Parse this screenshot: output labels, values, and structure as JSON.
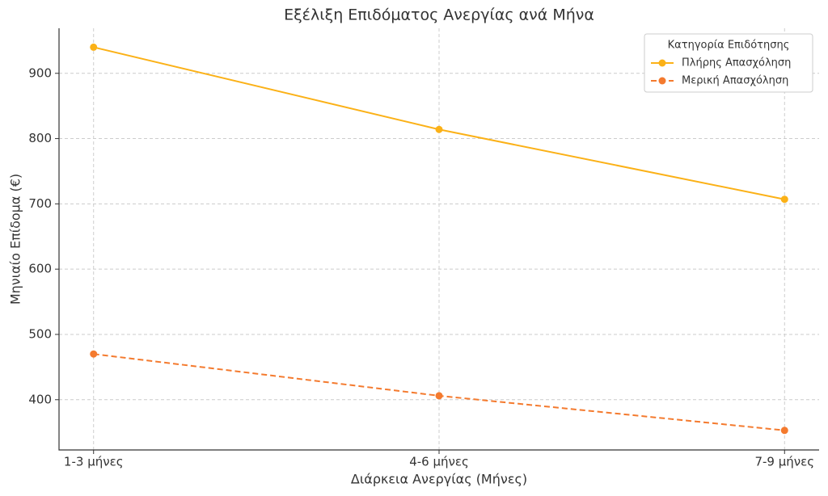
{
  "chart_data": {
    "type": "line",
    "title": "Εξέλιξη Επιδόματος Ανεργίας ανά Μήνα",
    "x_label": "Διάρκεια Ανεργίας (Μήνες)",
    "y_label": "Μηνιαίο Επίδομα (€)",
    "categories": [
      "1-3 μήνες",
      "4-6 μήνες",
      "7-9 μήνες"
    ],
    "series": [
      {
        "name": "Πλήρης Απασχόληση",
        "color": "#fbb117",
        "linestyle": "solid",
        "values": [
          940,
          814,
          707
        ]
      },
      {
        "name": "Μερική Απασχόληση",
        "color": "#f47a2e",
        "linestyle": "dashed",
        "values": [
          470,
          406,
          353
        ]
      }
    ],
    "ylim": [
      323,
      969
    ],
    "yticks": [
      400,
      500,
      600,
      700,
      800,
      900
    ],
    "grid": true,
    "legend_title": "Κατηγορία Επιδότησης",
    "legend_loc": "upper right"
  }
}
